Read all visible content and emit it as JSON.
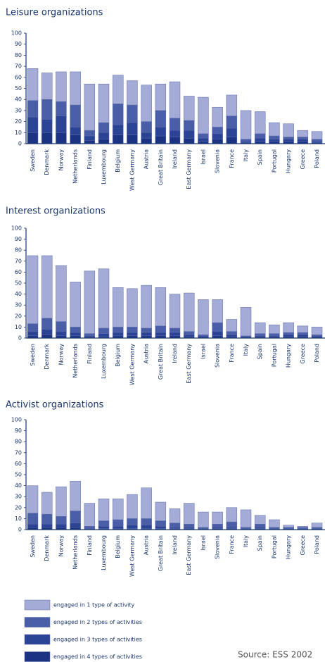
{
  "chart_data": [
    {
      "type": "bar",
      "stacked": true,
      "title": "Leisure organizations",
      "categories": [
        "Sweden",
        "Denmark",
        "Norway",
        "Netherlands",
        "Finland",
        "Luxembourg",
        "Belgium",
        "West Germany",
        "Austria",
        "Great Britain",
        "Ireland",
        "East Germany",
        "Israel",
        "Slovenia",
        "France",
        "Italy",
        "Spain",
        "Portugal",
        "Hungary",
        "Greece",
        "Poland"
      ],
      "series": [
        {
          "values": [
            29,
            24,
            27,
            30,
            42,
            35,
            26,
            22,
            33,
            24,
            33,
            22,
            33,
            18,
            19,
            26,
            20,
            12,
            12,
            6,
            7
          ]
        },
        {
          "values": [
            15,
            18,
            13,
            20,
            5,
            9,
            19,
            16,
            10,
            15,
            11,
            9,
            4,
            6,
            11,
            2,
            4,
            3,
            2,
            2,
            2
          ]
        },
        {
          "values": [
            14,
            12,
            15,
            7,
            4,
            6,
            9,
            11,
            5,
            8,
            6,
            7,
            3,
            5,
            8,
            1,
            3,
            2,
            2,
            2,
            1
          ]
        },
        {
          "values": [
            10,
            10,
            10,
            8,
            3,
            4,
            8,
            8,
            5,
            7,
            6,
            5,
            2,
            4,
            6,
            1,
            2,
            2,
            2,
            2,
            1
          ]
        }
      ],
      "ylim": [
        0,
        100
      ],
      "yticks": [
        0,
        10,
        20,
        30,
        40,
        50,
        60,
        70,
        80,
        90,
        100
      ]
    },
    {
      "type": "bar",
      "stacked": true,
      "title": "Interest organizations",
      "categories": [
        "Sweden",
        "Denmark",
        "Norway",
        "Netherlands",
        "Finland",
        "Luxembourg",
        "Belgium",
        "West Germany",
        "Austria",
        "Great Britain",
        "Ireland",
        "East Germany",
        "Israel",
        "Slovenia",
        "France",
        "Italy",
        "Spain",
        "Portugal",
        "Hungary",
        "Greece",
        "Poland"
      ],
      "series": [
        {
          "values": [
            62,
            57,
            51,
            41,
            57,
            54,
            36,
            35,
            39,
            35,
            31,
            35,
            32,
            21,
            11,
            26,
            10,
            8,
            9,
            6,
            7
          ]
        },
        {
          "values": [
            7,
            10,
            9,
            5,
            2,
            5,
            5,
            5,
            4,
            6,
            4,
            3,
            1,
            8,
            3,
            1,
            2,
            2,
            2,
            2,
            1
          ]
        },
        {
          "values": [
            4,
            5,
            4,
            3,
            1,
            3,
            3,
            3,
            3,
            3,
            3,
            2,
            1,
            4,
            2,
            1,
            1,
            1,
            2,
            2,
            1
          ]
        },
        {
          "values": [
            2,
            3,
            2,
            2,
            1,
            1,
            2,
            2,
            2,
            2,
            2,
            1,
            1,
            2,
            1,
            0,
            1,
            1,
            1,
            1,
            1
          ]
        }
      ],
      "ylim": [
        0,
        100
      ],
      "yticks": [
        0,
        10,
        20,
        30,
        40,
        50,
        60,
        70,
        80,
        90,
        100
      ]
    },
    {
      "type": "bar",
      "stacked": true,
      "title": "Activist organizations",
      "categories": [
        "Sweden",
        "Denmark",
        "Norway",
        "Netherlands",
        "Finland",
        "Luxembourg",
        "Belgium",
        "West Germany",
        "Austria",
        "Great Britain",
        "Ireland",
        "East Germany",
        "Israel",
        "Slovenia",
        "France",
        "Italy",
        "Spain",
        "Portugal",
        "Hungary",
        "Greece",
        "Poland"
      ],
      "series": [
        {
          "values": [
            25,
            20,
            27,
            27,
            21,
            20,
            19,
            22,
            28,
            17,
            13,
            19,
            14,
            11,
            13,
            16,
            8,
            7,
            2,
            1,
            4
          ]
        },
        {
          "values": [
            10,
            9,
            7,
            11,
            2,
            5,
            6,
            6,
            6,
            5,
            4,
            3,
            1,
            3,
            5,
            1,
            3,
            1,
            1,
            1,
            1
          ]
        },
        {
          "values": [
            3,
            3,
            3,
            4,
            1,
            2,
            2,
            3,
            3,
            2,
            1,
            1,
            1,
            1,
            1,
            1,
            1,
            1,
            1,
            1,
            1
          ]
        },
        {
          "values": [
            2,
            2,
            2,
            2,
            0,
            1,
            1,
            1,
            1,
            1,
            1,
            1,
            0,
            1,
            1,
            0,
            1,
            0,
            0,
            0,
            0
          ]
        }
      ],
      "ylim": [
        0,
        100
      ],
      "yticks": [
        0,
        10,
        20,
        30,
        40,
        50,
        60,
        70,
        80,
        90,
        100
      ]
    }
  ],
  "legend": [
    {
      "name": "engaged in 1 type of activity",
      "color": "#a3abd6"
    },
    {
      "name": "engaged in 2 types of activities",
      "color": "#4a5ea8"
    },
    {
      "name": "engaged in 3 types of activities",
      "color": "#2b4395"
    },
    {
      "name": "engaged in 4 types of activities",
      "color": "#1c3384"
    }
  ],
  "source": "Source: ESS 2002"
}
